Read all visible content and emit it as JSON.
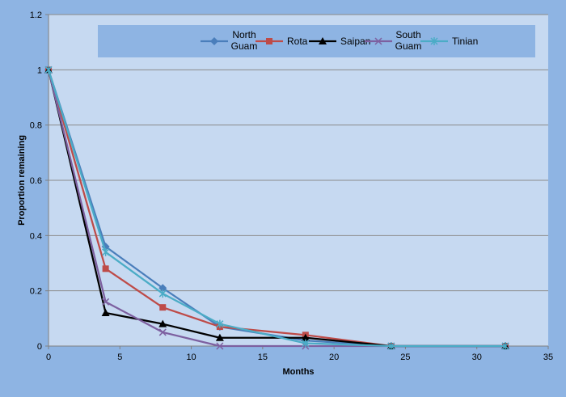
{
  "chart_data": {
    "type": "line",
    "title": "",
    "xlabel": "Months",
    "ylabel": "Proportion remaining",
    "xlim": [
      0,
      35
    ],
    "ylim": [
      0,
      1.2
    ],
    "x_ticks": [
      "0",
      "5",
      "10",
      "15",
      "20",
      "25",
      "30",
      "35"
    ],
    "y_ticks": [
      "0",
      "0.2",
      "0.4",
      "0.6",
      "0.8",
      "1",
      "1.2"
    ],
    "grid": "horizontal",
    "legend_position": "top",
    "series": [
      {
        "name": "North Guam",
        "label_lines": [
          "North",
          "Guam"
        ],
        "color": "#4a7ebb",
        "marker": "diamond",
        "x": [
          0,
          4,
          8,
          12,
          18,
          24,
          32
        ],
        "y": [
          1.0,
          0.36,
          0.21,
          0.07,
          0.02,
          0.0,
          0.0
        ]
      },
      {
        "name": "Rota",
        "label_lines": [
          "Rota"
        ],
        "color": "#be4b48",
        "marker": "square",
        "x": [
          0,
          4,
          8,
          12,
          18,
          24,
          32
        ],
        "y": [
          1.0,
          0.28,
          0.14,
          0.07,
          0.04,
          0.0,
          0.0
        ]
      },
      {
        "name": "Saipan",
        "label_lines": [
          "Saipan"
        ],
        "color": "#000000",
        "marker": "triangle",
        "x": [
          0,
          4,
          8,
          12,
          18,
          24,
          32
        ],
        "y": [
          1.0,
          0.12,
          0.08,
          0.03,
          0.03,
          0.0,
          0.0
        ]
      },
      {
        "name": "South Guam",
        "label_lines": [
          "South",
          "Guam"
        ],
        "color": "#7d60a0",
        "marker": "x",
        "x": [
          0,
          4,
          8,
          12,
          18,
          24,
          32
        ],
        "y": [
          1.0,
          0.16,
          0.05,
          0.0,
          0.0,
          0.0,
          0.0
        ]
      },
      {
        "name": "Tinian",
        "label_lines": [
          "Tinian"
        ],
        "color": "#4bacc6",
        "marker": "star",
        "x": [
          0,
          4,
          8,
          12,
          18,
          24,
          32
        ],
        "y": [
          1.0,
          0.34,
          0.19,
          0.08,
          0.01,
          0.0,
          0.0
        ]
      }
    ]
  }
}
